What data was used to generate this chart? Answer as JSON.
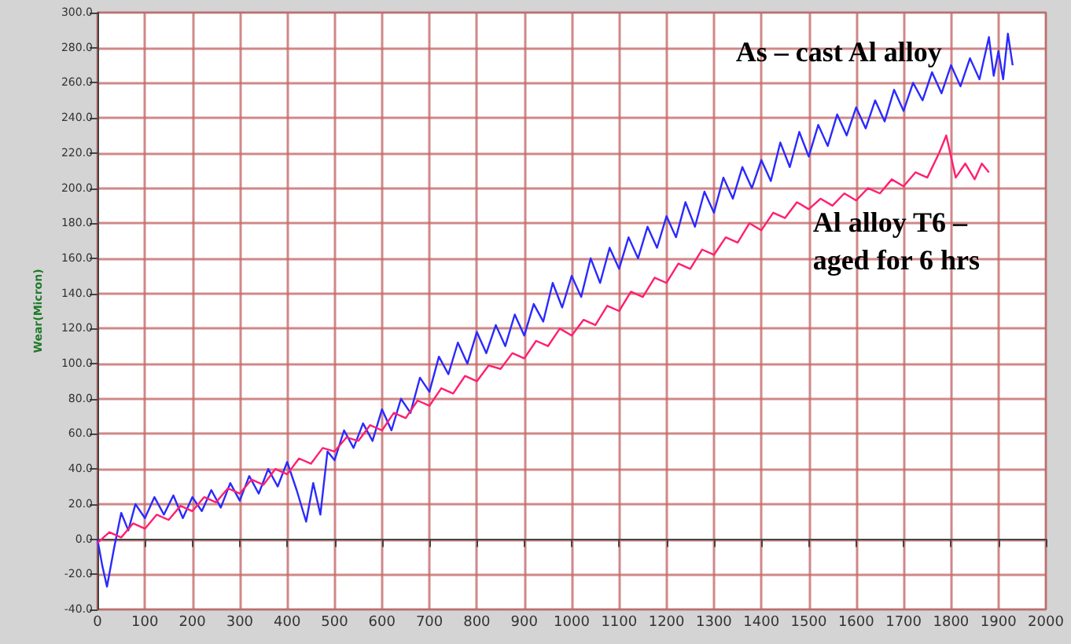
{
  "chart_data": {
    "type": "line",
    "ylabel": "Wear(Micron)",
    "xlim": [
      0,
      2000
    ],
    "xticks": [
      0,
      100,
      200,
      300,
      400,
      500,
      600,
      700,
      800,
      900,
      1000,
      1100,
      1200,
      1300,
      1400,
      1500,
      1600,
      1700,
      1800,
      1900,
      2000
    ],
    "ylim": [
      -40,
      300
    ],
    "yticks": [
      {
        "value": -40,
        "label": "-40.0"
      },
      {
        "value": -20,
        "label": "-20.0"
      },
      {
        "value": 0,
        "label": "0.0"
      },
      {
        "value": 20,
        "label": "20.0"
      },
      {
        "value": 40,
        "label": "40.0"
      },
      {
        "value": 60,
        "label": "60.0"
      },
      {
        "value": 80,
        "label": "80.0"
      },
      {
        "value": 100,
        "label": "100.0"
      },
      {
        "value": 120,
        "label": "120.0"
      },
      {
        "value": 140,
        "label": "140.0"
      },
      {
        "value": 160,
        "label": "160.0"
      },
      {
        "value": 180,
        "label": "180.0"
      },
      {
        "value": 200,
        "label": "200.0"
      },
      {
        "value": 220,
        "label": "220.0"
      },
      {
        "value": 240,
        "label": "240.0"
      },
      {
        "value": 260,
        "label": "260.0"
      },
      {
        "value": 280,
        "label": "280.0"
      },
      {
        "value": 300,
        "label": "300.0"
      }
    ],
    "grid": true,
    "legend": false,
    "marker": "none",
    "line_style": "solid",
    "series": [
      {
        "name": "As – cast Al alloy",
        "color": "#2a2aff",
        "x": [
          0,
          10,
          20,
          35,
          50,
          65,
          80,
          100,
          120,
          140,
          160,
          180,
          200,
          220,
          240,
          260,
          280,
          300,
          320,
          340,
          360,
          380,
          400,
          420,
          440,
          455,
          470,
          485,
          500,
          520,
          540,
          560,
          580,
          600,
          620,
          640,
          660,
          680,
          700,
          720,
          740,
          760,
          780,
          800,
          820,
          840,
          860,
          880,
          900,
          920,
          940,
          960,
          980,
          1000,
          1020,
          1040,
          1060,
          1080,
          1100,
          1120,
          1140,
          1160,
          1180,
          1200,
          1220,
          1240,
          1260,
          1280,
          1300,
          1320,
          1340,
          1360,
          1380,
          1400,
          1420,
          1440,
          1460,
          1480,
          1500,
          1520,
          1540,
          1560,
          1580,
          1600,
          1620,
          1640,
          1660,
          1680,
          1700,
          1720,
          1740,
          1760,
          1780,
          1800,
          1820,
          1840,
          1860,
          1880,
          1890,
          1900,
          1910,
          1920,
          1930
        ],
        "values": [
          0,
          -15,
          -27,
          -5,
          15,
          5,
          20,
          12,
          24,
          14,
          25,
          12,
          24,
          16,
          28,
          18,
          32,
          22,
          36,
          26,
          40,
          30,
          44,
          28,
          10,
          32,
          14,
          50,
          45,
          62,
          52,
          66,
          56,
          74,
          62,
          80,
          72,
          92,
          84,
          104,
          94,
          112,
          100,
          118,
          106,
          122,
          110,
          128,
          116,
          134,
          124,
          146,
          132,
          150,
          138,
          160,
          146,
          166,
          154,
          172,
          160,
          178,
          166,
          184,
          172,
          192,
          178,
          198,
          186,
          206,
          194,
          212,
          200,
          216,
          204,
          226,
          212,
          232,
          218,
          236,
          224,
          242,
          230,
          246,
          234,
          250,
          238,
          256,
          244,
          260,
          250,
          266,
          254,
          270,
          258,
          274,
          262,
          286,
          264,
          278,
          262,
          288,
          270
        ]
      },
      {
        "name": "Al alloy T6 – aged for 6 hrs",
        "color": "#ff1f70",
        "x": [
          0,
          25,
          50,
          75,
          100,
          125,
          150,
          175,
          200,
          225,
          250,
          275,
          300,
          325,
          350,
          375,
          400,
          425,
          450,
          475,
          500,
          525,
          550,
          575,
          600,
          625,
          650,
          675,
          700,
          725,
          750,
          775,
          800,
          825,
          850,
          875,
          900,
          925,
          950,
          975,
          1000,
          1025,
          1050,
          1075,
          1100,
          1125,
          1150,
          1175,
          1200,
          1225,
          1250,
          1275,
          1300,
          1325,
          1350,
          1375,
          1400,
          1425,
          1450,
          1475,
          1500,
          1525,
          1550,
          1575,
          1600,
          1625,
          1650,
          1675,
          1700,
          1725,
          1750,
          1775,
          1790,
          1800,
          1810,
          1830,
          1850,
          1865,
          1880
        ],
        "values": [
          -2,
          4,
          1,
          9,
          6,
          14,
          11,
          19,
          16,
          24,
          21,
          29,
          26,
          34,
          31,
          40,
          37,
          46,
          43,
          52,
          50,
          58,
          56,
          65,
          62,
          72,
          69,
          79,
          76,
          86,
          83,
          93,
          90,
          99,
          97,
          106,
          103,
          113,
          110,
          120,
          116,
          125,
          122,
          133,
          130,
          141,
          138,
          149,
          146,
          157,
          154,
          165,
          162,
          172,
          169,
          180,
          176,
          186,
          183,
          192,
          188,
          194,
          190,
          197,
          193,
          200,
          197,
          205,
          201,
          209,
          206,
          220,
          230,
          218,
          206,
          214,
          205,
          214,
          209
        ]
      }
    ]
  }
}
